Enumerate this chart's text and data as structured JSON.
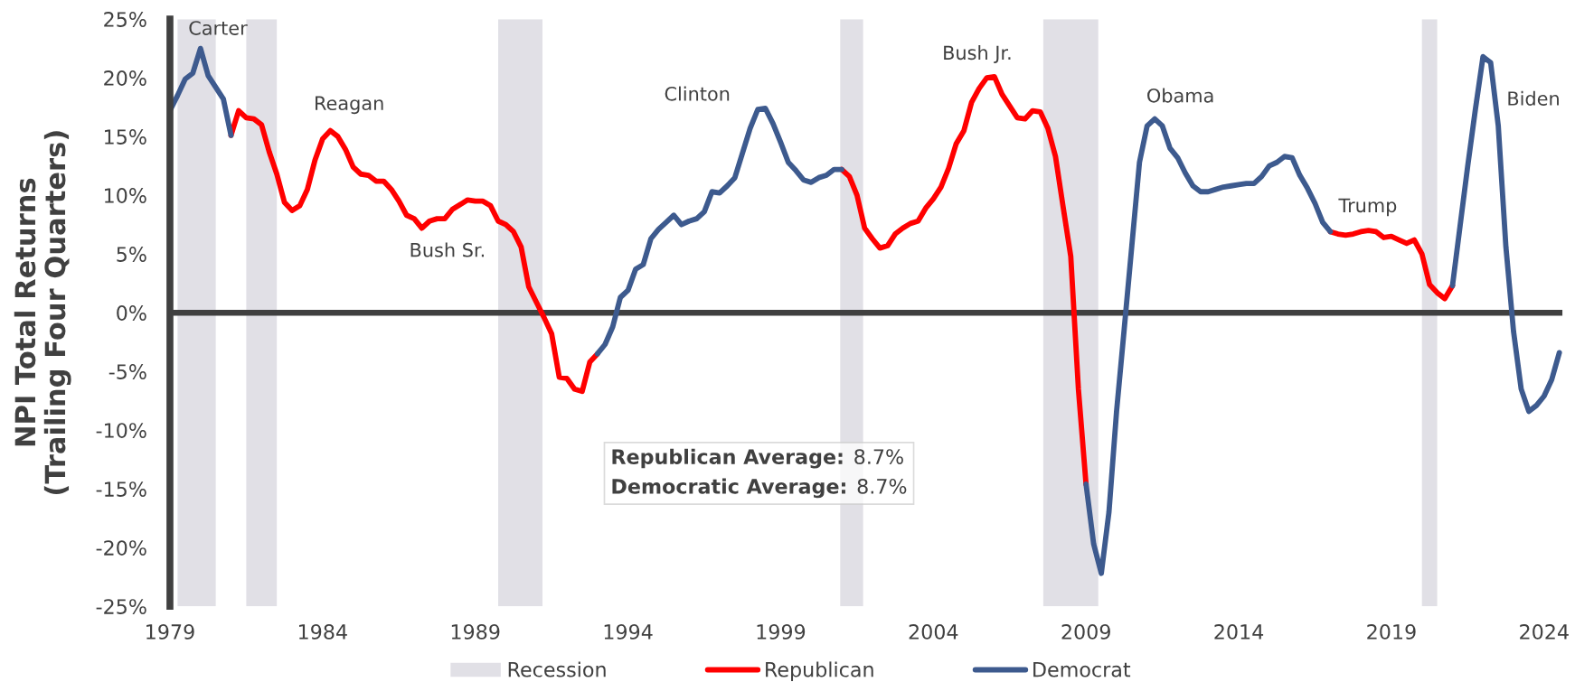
{
  "chart_data": {
    "type": "line",
    "ylabel": "NPI Total Returns\n(Trailing Four Quarters)",
    "xlim": [
      1979,
      2024.6
    ],
    "xticks": [
      1979,
      1984,
      1989,
      1994,
      1999,
      2004,
      2009,
      2014,
      2019,
      2024
    ],
    "ylim": [
      -25,
      25
    ],
    "yticks": [
      {
        "value": -25,
        "label": "-25%"
      },
      {
        "value": -20,
        "label": "-20%"
      },
      {
        "value": -15,
        "label": "-15%"
      },
      {
        "value": -10,
        "label": "-10%"
      },
      {
        "value": -5,
        "label": "-5%"
      },
      {
        "value": 0,
        "label": "0%"
      },
      {
        "value": 5,
        "label": "5%"
      },
      {
        "value": 10,
        "label": "10%"
      },
      {
        "value": 15,
        "label": "15%"
      },
      {
        "value": 20,
        "label": "20%"
      },
      {
        "value": 25,
        "label": "25%"
      }
    ],
    "x": [
      1979,
      1979.25,
      1979.5,
      1979.75,
      1980,
      1980.25,
      1980.5,
      1980.75,
      1981,
      1981.25,
      1981.5,
      1981.75,
      1982,
      1982.25,
      1982.5,
      1982.75,
      1983,
      1983.25,
      1983.5,
      1983.75,
      1984,
      1984.25,
      1984.5,
      1984.75,
      1985,
      1985.25,
      1985.5,
      1985.75,
      1986,
      1986.25,
      1986.5,
      1986.75,
      1987,
      1987.25,
      1987.5,
      1987.75,
      1988,
      1988.25,
      1988.5,
      1988.75,
      1989,
      1989.25,
      1989.5,
      1989.75,
      1990,
      1990.25,
      1990.5,
      1990.75,
      1991,
      1991.25,
      1991.5,
      1991.75,
      1992,
      1992.25,
      1992.5,
      1992.75,
      1993,
      1993.25,
      1993.5,
      1993.75,
      1994,
      1994.25,
      1994.5,
      1994.75,
      1995,
      1995.25,
      1995.5,
      1995.75,
      1996,
      1996.25,
      1996.5,
      1996.75,
      1997,
      1997.25,
      1997.5,
      1997.75,
      1998,
      1998.25,
      1998.5,
      1998.75,
      1999,
      1999.25,
      1999.5,
      1999.75,
      2000,
      2000.25,
      2000.5,
      2000.75,
      2001,
      2001.25,
      2001.5,
      2001.75,
      2002,
      2002.25,
      2002.5,
      2002.75,
      2003,
      2003.25,
      2003.5,
      2003.75,
      2004,
      2004.25,
      2004.5,
      2004.75,
      2005,
      2005.25,
      2005.5,
      2005.75,
      2006,
      2006.25,
      2006.5,
      2006.75,
      2007,
      2007.25,
      2007.5,
      2007.75,
      2008,
      2008.25,
      2008.5,
      2008.75,
      2009,
      2009.25,
      2009.5,
      2009.75,
      2010,
      2010.25,
      2010.5,
      2010.75,
      2011,
      2011.25,
      2011.5,
      2011.75,
      2012,
      2012.25,
      2012.5,
      2012.75,
      2013,
      2013.25,
      2013.5,
      2013.75,
      2014,
      2014.25,
      2014.5,
      2014.75,
      2015,
      2015.25,
      2015.5,
      2015.75,
      2016,
      2016.25,
      2016.5,
      2016.75,
      2017,
      2017.25,
      2017.5,
      2017.75,
      2018,
      2018.25,
      2018.5,
      2018.75,
      2019,
      2019.25,
      2019.5,
      2019.75,
      2020,
      2020.25,
      2020.5,
      2020.75,
      2021,
      2021.25,
      2021.5,
      2021.75,
      2022,
      2022.25,
      2022.5,
      2022.75,
      2023,
      2023.25,
      2023.5,
      2023.75,
      2024,
      2024.25,
      2024.5
    ],
    "series": [
      {
        "name": "Republican",
        "color": "#ff0000",
        "values": [
          null,
          null,
          null,
          null,
          null,
          null,
          null,
          null,
          15.1,
          17.2,
          16.6,
          16.5,
          16.0,
          13.7,
          11.8,
          9.4,
          8.7,
          9.1,
          10.5,
          13.0,
          14.8,
          15.5,
          15.0,
          13.9,
          12.4,
          11.8,
          11.7,
          11.2,
          11.2,
          10.5,
          9.5,
          8.3,
          8.0,
          7.2,
          7.8,
          8.0,
          8.0,
          8.8,
          9.2,
          9.6,
          9.5,
          9.5,
          9.1,
          7.8,
          7.5,
          6.9,
          5.6,
          2.2,
          0.9,
          -0.4,
          -1.8,
          -5.5,
          -5.6,
          -6.5,
          -6.7,
          -4.2,
          -3.5,
          null,
          null,
          null,
          null,
          null,
          null,
          null,
          null,
          null,
          null,
          null,
          null,
          null,
          null,
          null,
          null,
          null,
          null,
          null,
          null,
          null,
          null,
          null,
          null,
          null,
          null,
          null,
          null,
          null,
          null,
          null,
          12.2,
          11.6,
          10.0,
          7.2,
          6.3,
          5.5,
          5.7,
          6.7,
          7.2,
          7.6,
          7.8,
          8.9,
          9.7,
          10.7,
          12.3,
          14.4,
          15.5,
          17.9,
          19.1,
          20.0,
          20.1,
          18.6,
          17.6,
          16.6,
          16.5,
          17.2,
          17.1,
          15.7,
          13.3,
          9.0,
          4.8,
          -6.5,
          -14.6,
          null,
          null,
          null,
          null,
          null,
          null,
          null,
          null,
          null,
          null,
          null,
          null,
          null,
          null,
          null,
          null,
          null,
          null,
          null,
          null,
          null,
          null,
          null,
          null,
          null,
          null,
          null,
          null,
          null,
          null,
          null,
          6.9,
          6.7,
          6.6,
          6.7,
          6.9,
          7.0,
          6.9,
          6.4,
          6.5,
          6.2,
          5.9,
          6.2,
          5.0,
          2.4,
          1.7,
          1.2,
          2.3,
          null,
          null,
          null,
          null,
          null,
          null,
          null,
          null,
          null,
          null,
          null,
          null,
          null,
          null
        ]
      },
      {
        "name": "Democrat",
        "color": "#3d5a8e",
        "values": [
          17.2,
          18.5,
          19.9,
          20.4,
          22.5,
          20.2,
          19.2,
          18.2,
          15.1,
          null,
          null,
          null,
          null,
          null,
          null,
          null,
          null,
          null,
          null,
          null,
          null,
          null,
          null,
          null,
          null,
          null,
          null,
          null,
          null,
          null,
          null,
          null,
          null,
          null,
          null,
          null,
          null,
          null,
          null,
          null,
          null,
          null,
          null,
          null,
          null,
          null,
          null,
          null,
          null,
          null,
          null,
          null,
          null,
          null,
          null,
          null,
          -3.5,
          -2.7,
          -1.2,
          1.3,
          1.9,
          3.7,
          4.1,
          6.3,
          7.1,
          7.7,
          8.3,
          7.5,
          7.8,
          8.0,
          8.6,
          10.3,
          10.2,
          10.8,
          11.5,
          13.6,
          15.7,
          17.3,
          17.4,
          16.1,
          14.5,
          12.8,
          12.1,
          11.3,
          11.1,
          11.5,
          11.7,
          12.2,
          12.2,
          null,
          null,
          null,
          null,
          null,
          null,
          null,
          null,
          null,
          null,
          null,
          null,
          null,
          null,
          null,
          null,
          null,
          null,
          null,
          null,
          null,
          null,
          null,
          null,
          null,
          null,
          null,
          null,
          null,
          null,
          null,
          -14.6,
          -19.7,
          -22.2,
          -17.0,
          -8.4,
          -1.4,
          5.7,
          12.8,
          15.9,
          16.5,
          15.9,
          14.0,
          13.2,
          11.9,
          10.8,
          10.3,
          10.3,
          10.5,
          10.7,
          10.8,
          10.9,
          11.0,
          11.0,
          11.6,
          12.5,
          12.8,
          13.3,
          13.2,
          11.7,
          10.6,
          9.3,
          7.7,
          6.9,
          null,
          null,
          null,
          null,
          null,
          null,
          null,
          null,
          null,
          null,
          null,
          null,
          null,
          null,
          null,
          2.3,
          7.4,
          12.5,
          17.3,
          21.8,
          21.3,
          15.9,
          5.6,
          -1.6,
          -6.5,
          -8.4,
          -7.9,
          -7.1,
          -5.7,
          -3.4
        ]
      }
    ],
    "bands": [
      {
        "axis": "x",
        "from": 1979.25,
        "to": 1980.5,
        "label": "Recession",
        "color": "#e1e0e6"
      },
      {
        "axis": "x",
        "from": 1981.5,
        "to": 1982.5,
        "color": "#e1e0e6"
      },
      {
        "axis": "x",
        "from": 1989.75,
        "to": 1991.2,
        "color": "#e1e0e6"
      },
      {
        "axis": "x",
        "from": 2000.95,
        "to": 2001.7,
        "color": "#e1e0e6"
      },
      {
        "axis": "x",
        "from": 2007.6,
        "to": 2009.4,
        "color": "#e1e0e6"
      },
      {
        "axis": "x",
        "from": 2020.0,
        "to": 2020.5,
        "color": "#e1e0e6"
      }
    ],
    "ref_lines": [
      {
        "axis": "y",
        "value": 0,
        "color": "#404040"
      }
    ],
    "annotations": [
      "Carter",
      "Reagan",
      "Bush Sr.",
      "Clinton",
      "Bush Jr.",
      "Obama",
      "Trump",
      "Biden",
      "Republican Average: 8.7%",
      "Democratic Average: 8.7%"
    ],
    "legend": "bottom"
  }
}
